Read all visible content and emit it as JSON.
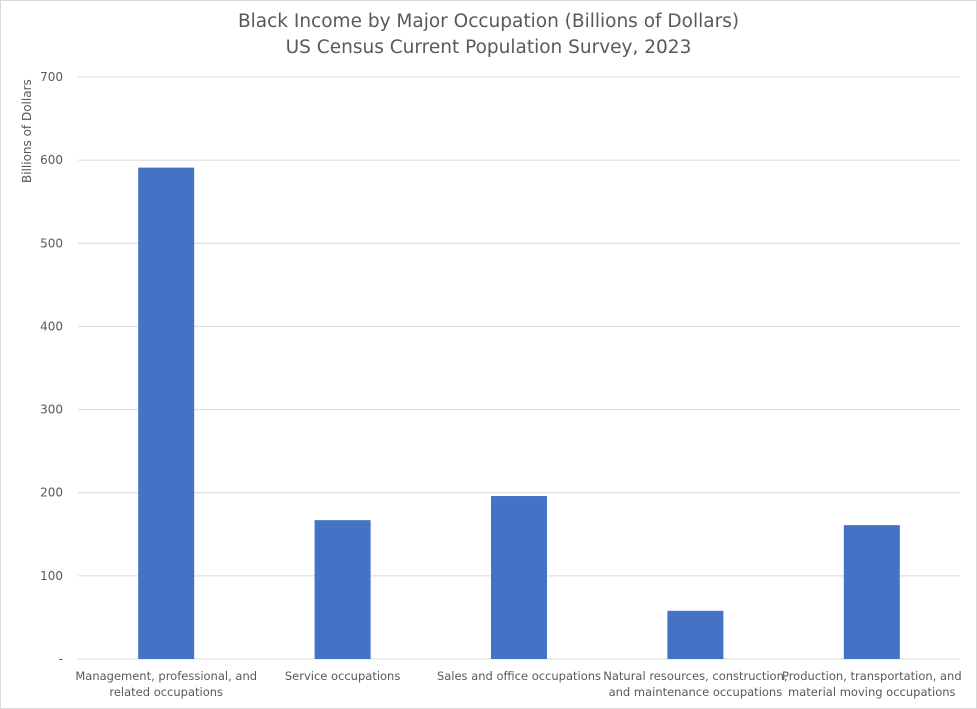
{
  "chart_data": {
    "type": "bar",
    "title": "Black Income by Major Occupation (Billions of Dollars)",
    "subtitle": "US Census Current Population Survey, 2023",
    "ylabel": "Billions of Dollars",
    "xlabel": "",
    "ylim": [
      0,
      700
    ],
    "yticks": [
      0,
      100,
      200,
      300,
      400,
      500,
      600,
      700
    ],
    "ytick_labels": [
      "-",
      "100",
      "200",
      "300",
      "400",
      "500",
      "600",
      "700"
    ],
    "grid": true,
    "legend": "none",
    "bar_color": "#4472C4",
    "categories": [
      [
        "Management, professional, and",
        "related occupations"
      ],
      [
        "Service occupations"
      ],
      [
        "Sales and office occupations"
      ],
      [
        "Natural resources, construction,",
        "and maintenance occupations"
      ],
      [
        "Production, transportation, and",
        "material moving occupations"
      ]
    ],
    "values": [
      591,
      167,
      196,
      58,
      161
    ]
  }
}
